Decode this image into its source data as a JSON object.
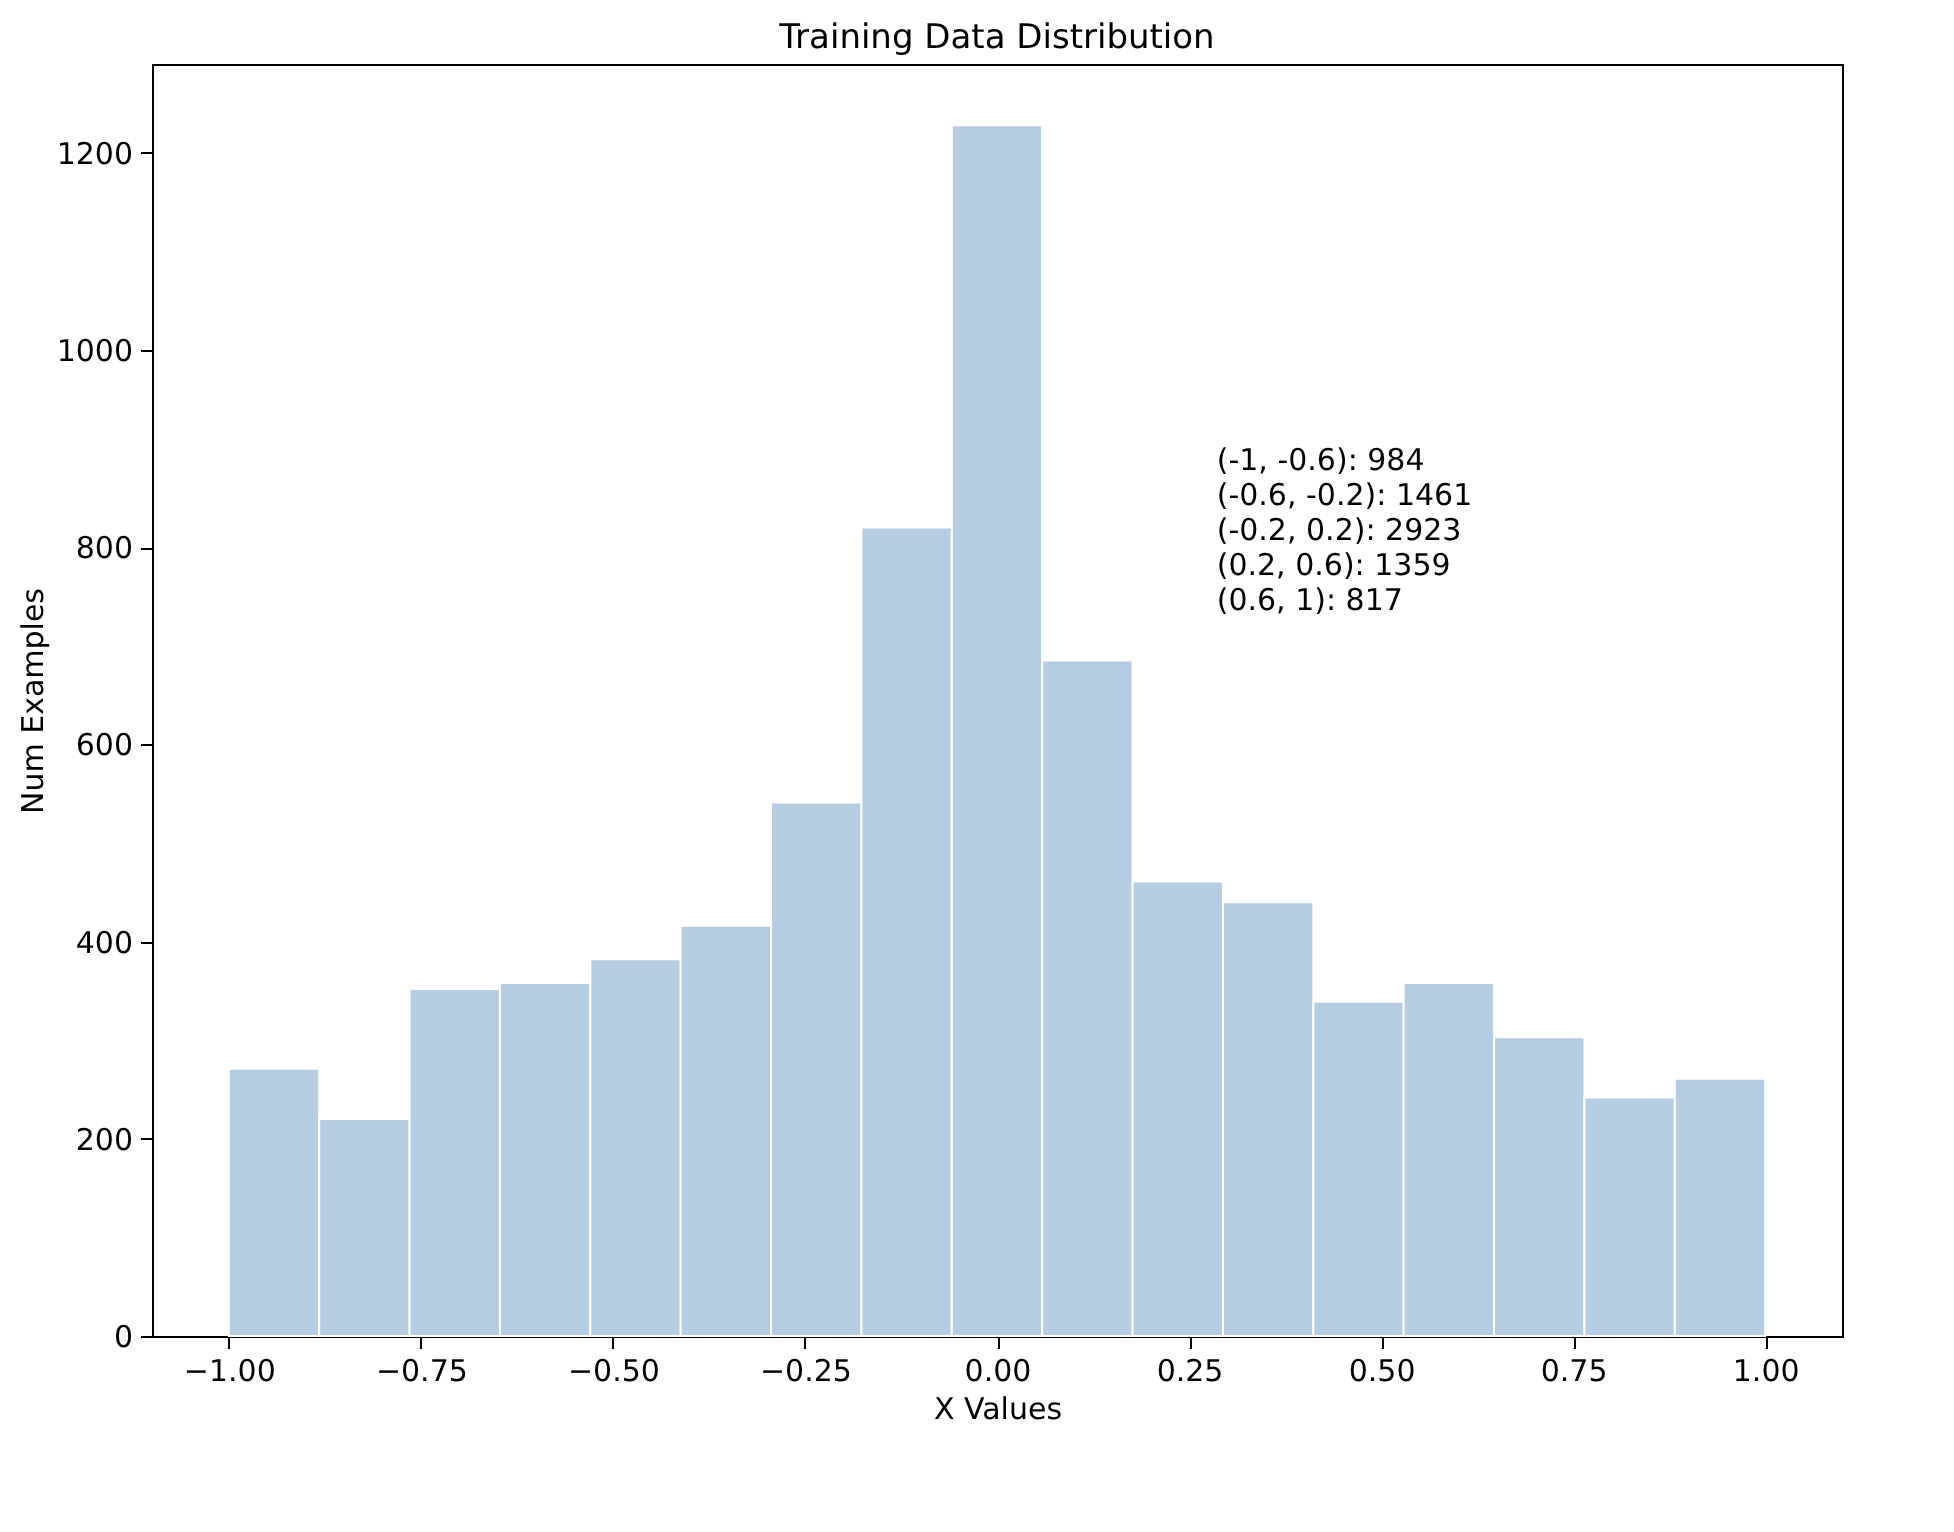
{
  "chart_data": {
    "type": "histogram",
    "title": "Training Data Distribution",
    "xlabel": "X Values",
    "ylabel": "Num Examples",
    "bins": [
      -1.0,
      -0.88235,
      -0.76471,
      -0.64706,
      -0.52941,
      -0.41176,
      -0.29412,
      -0.17647,
      -0.05882,
      0.05882,
      0.17647,
      0.29412,
      0.41176,
      0.52941,
      0.64706,
      0.76471,
      0.88235,
      1.0
    ],
    "values": [
      271,
      220,
      352,
      358,
      382,
      416,
      541,
      820,
      1228,
      685,
      461,
      440,
      339,
      358,
      303,
      242,
      261
    ],
    "color": "#b4cde2",
    "xlim": [
      -1.1,
      1.1
    ],
    "ylim": [
      0,
      1290
    ],
    "xticks": [
      {
        "value": -1.0,
        "label": "−1.00"
      },
      {
        "value": -0.75,
        "label": "−0.75"
      },
      {
        "value": -0.5,
        "label": "−0.50"
      },
      {
        "value": -0.25,
        "label": "−0.25"
      },
      {
        "value": 0,
        "label": "0.00"
      },
      {
        "value": 0.25,
        "label": "0.25"
      },
      {
        "value": 0.5,
        "label": "0.50"
      },
      {
        "value": 0.75,
        "label": "0.75"
      },
      {
        "value": 1.0,
        "label": "1.00"
      }
    ],
    "yticks": [
      0,
      200,
      400,
      600,
      800,
      1000,
      1200
    ],
    "grid": false,
    "legend": false,
    "annotations": [
      "(-1, -0.6): 984",
      "(-0.6, -0.2): 1461",
      "(-0.2, 0.2): 2923",
      "(0.2, 0.6): 1359",
      "(0.6, 1): 817"
    ]
  }
}
